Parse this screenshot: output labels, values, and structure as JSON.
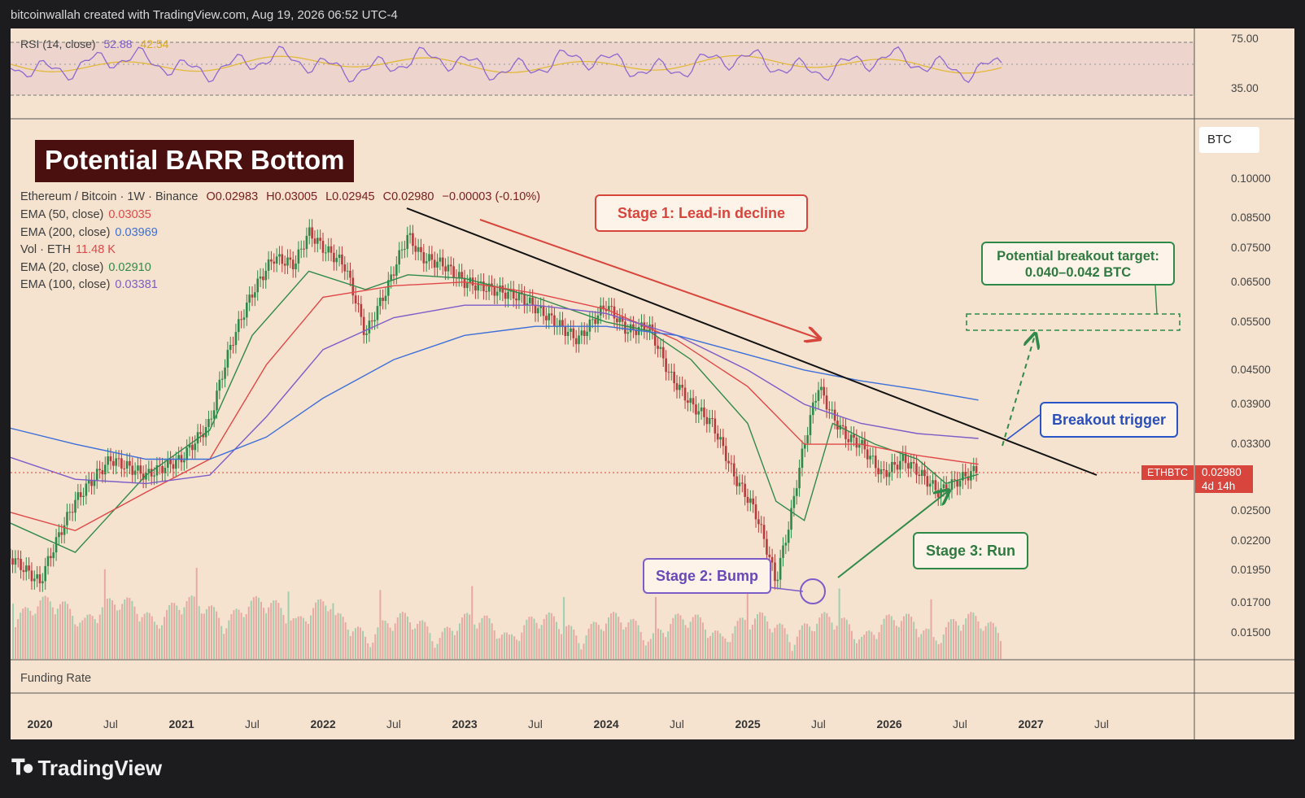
{
  "caption": "bitcoinwallah created with TradingView.com, Aug 19, 2026 06:52 UTC-4",
  "brand": {
    "name": "TradingView",
    "logo_icon": "tradingview-logo-icon"
  },
  "title": "Potential BARR Bottom",
  "currency_badge": "BTC",
  "legend": {
    "symbol": "Ethereum / Bitcoin · 1W · Binance",
    "open": "O0.02983",
    "high": "H0.03005",
    "low": "L0.02945",
    "close": "C0.02980",
    "change": "−0.00003 (-0.10%)",
    "indicators": [
      {
        "label": "EMA (50, close)",
        "value": "0.03035",
        "color": "#e04848"
      },
      {
        "label": "EMA (200, close)",
        "value": "0.03969",
        "color": "#3d6fd8"
      },
      {
        "label": "Vol · ETH",
        "value": "11.48 K",
        "color": "#e04848"
      },
      {
        "label": "EMA (20, close)",
        "value": "0.02910",
        "color": "#2f8a4a"
      },
      {
        "label": "EMA (100, close)",
        "value": "0.03381",
        "color": "#7c5cc8"
      }
    ]
  },
  "rsi": {
    "label": "RSI (14, close)",
    "value": "52.88",
    "ma_value": "42.54",
    "ticks": [
      "75.00",
      "35.00"
    ]
  },
  "funding_label": "Funding Rate",
  "price_label": {
    "symbol": "ETHBTC",
    "price": "0.02980",
    "countdown": "4d 14h"
  },
  "callouts": {
    "stage1": "Stage 1: Lead-in decline",
    "stage2": "Stage 2: Bump",
    "stage3": "Stage 3: Run",
    "breakout": "Breakout trigger",
    "target_line1": "Potential breakout target:",
    "target_line2": "0.040–0.042 BTC"
  },
  "colors": {
    "up": "#2f8a4a",
    "down": "#b83a3a",
    "background": "#f5e3cf",
    "accent": "#e04848"
  },
  "chart_data": {
    "type": "line",
    "title": "Potential BARR Bottom",
    "xlabel": "",
    "ylabel": "",
    "y_scale": "log",
    "y_ticks": [
      "0.10000",
      "0.08500",
      "0.07500",
      "0.06500",
      "0.05500",
      "0.04500",
      "0.03900",
      "0.03300",
      "0.02500",
      "0.02200",
      "0.01950",
      "0.01700",
      "0.01500"
    ],
    "x_ticks": [
      {
        "label": "2020",
        "major": true
      },
      {
        "label": "Jul",
        "major": false
      },
      {
        "label": "2021",
        "major": true
      },
      {
        "label": "Jul",
        "major": false
      },
      {
        "label": "2022",
        "major": true
      },
      {
        "label": "Jul",
        "major": false
      },
      {
        "label": "2023",
        "major": true
      },
      {
        "label": "Jul",
        "major": false
      },
      {
        "label": "2024",
        "major": true
      },
      {
        "label": "Jul",
        "major": false
      },
      {
        "label": "2025",
        "major": true
      },
      {
        "label": "Jul",
        "major": false
      },
      {
        "label": "2026",
        "major": true
      },
      {
        "label": "Jul",
        "major": false
      },
      {
        "label": "2027",
        "major": true
      },
      {
        "label": "Jul",
        "major": false
      }
    ],
    "series": [
      {
        "name": "ETHBTC",
        "x": [
          2019.75,
          2020.0,
          2020.25,
          2020.5,
          2020.75,
          2021.0,
          2021.2,
          2021.35,
          2021.5,
          2021.65,
          2021.8,
          2021.9,
          2022.0,
          2022.15,
          2022.3,
          2022.45,
          2022.6,
          2022.7,
          2022.85,
          2023.0,
          2023.2,
          2023.4,
          2023.6,
          2023.8,
          2024.0,
          2024.15,
          2024.3,
          2024.45,
          2024.6,
          2024.75,
          2024.9,
          2025.05,
          2025.2,
          2025.3,
          2025.4,
          2025.5,
          2025.6,
          2025.7,
          2025.8,
          2025.95,
          2026.1,
          2026.2,
          2026.35,
          2026.5,
          2026.63
        ],
        "values": [
          0.021,
          0.0185,
          0.026,
          0.031,
          0.029,
          0.031,
          0.036,
          0.05,
          0.062,
          0.072,
          0.07,
          0.08,
          0.075,
          0.07,
          0.052,
          0.063,
          0.079,
          0.072,
          0.07,
          0.065,
          0.063,
          0.061,
          0.056,
          0.051,
          0.059,
          0.053,
          0.054,
          0.044,
          0.039,
          0.036,
          0.029,
          0.025,
          0.0185,
          0.024,
          0.033,
          0.042,
          0.037,
          0.034,
          0.033,
          0.029,
          0.031,
          0.0295,
          0.027,
          0.0285,
          0.0298
        ]
      },
      {
        "name": "EMA (20, close)",
        "x": [
          2019.75,
          2020.25,
          2020.75,
          2021.2,
          2021.5,
          2021.9,
          2022.3,
          2022.6,
          2023.0,
          2023.5,
          2024.0,
          2024.3,
          2024.6,
          2025.0,
          2025.2,
          2025.4,
          2025.6,
          2025.9,
          2026.2,
          2026.4,
          2026.63
        ],
        "values": [
          0.024,
          0.021,
          0.029,
          0.035,
          0.052,
          0.068,
          0.063,
          0.067,
          0.066,
          0.061,
          0.055,
          0.053,
          0.047,
          0.036,
          0.026,
          0.024,
          0.036,
          0.033,
          0.031,
          0.028,
          0.0291
        ]
      },
      {
        "name": "EMA (50, close)",
        "x": [
          2019.75,
          2020.25,
          2020.75,
          2021.2,
          2021.6,
          2022.0,
          2022.5,
          2023.0,
          2023.5,
          2024.0,
          2024.5,
          2025.0,
          2025.4,
          2025.8,
          2026.2,
          2026.63
        ],
        "values": [
          0.025,
          0.023,
          0.027,
          0.031,
          0.046,
          0.061,
          0.064,
          0.065,
          0.062,
          0.058,
          0.051,
          0.042,
          0.033,
          0.033,
          0.0315,
          0.03035
        ]
      },
      {
        "name": "EMA (100, close)",
        "x": [
          2019.75,
          2020.25,
          2020.75,
          2021.2,
          2021.6,
          2022.0,
          2022.5,
          2023.0,
          2023.5,
          2024.0,
          2024.5,
          2025.0,
          2025.4,
          2025.8,
          2026.2,
          2026.63
        ],
        "values": [
          0.0315,
          0.0285,
          0.028,
          0.029,
          0.037,
          0.049,
          0.056,
          0.059,
          0.059,
          0.057,
          0.052,
          0.045,
          0.039,
          0.036,
          0.0345,
          0.03381
        ]
      },
      {
        "name": "EMA (200, close)",
        "x": [
          2019.75,
          2020.25,
          2020.75,
          2021.2,
          2021.6,
          2022.0,
          2022.5,
          2023.0,
          2023.5,
          2024.0,
          2024.5,
          2025.0,
          2025.4,
          2025.8,
          2026.2,
          2026.63
        ],
        "values": [
          0.0355,
          0.033,
          0.031,
          0.031,
          0.034,
          0.04,
          0.047,
          0.052,
          0.054,
          0.054,
          0.052,
          0.048,
          0.045,
          0.043,
          0.0415,
          0.03969
        ]
      }
    ]
  }
}
